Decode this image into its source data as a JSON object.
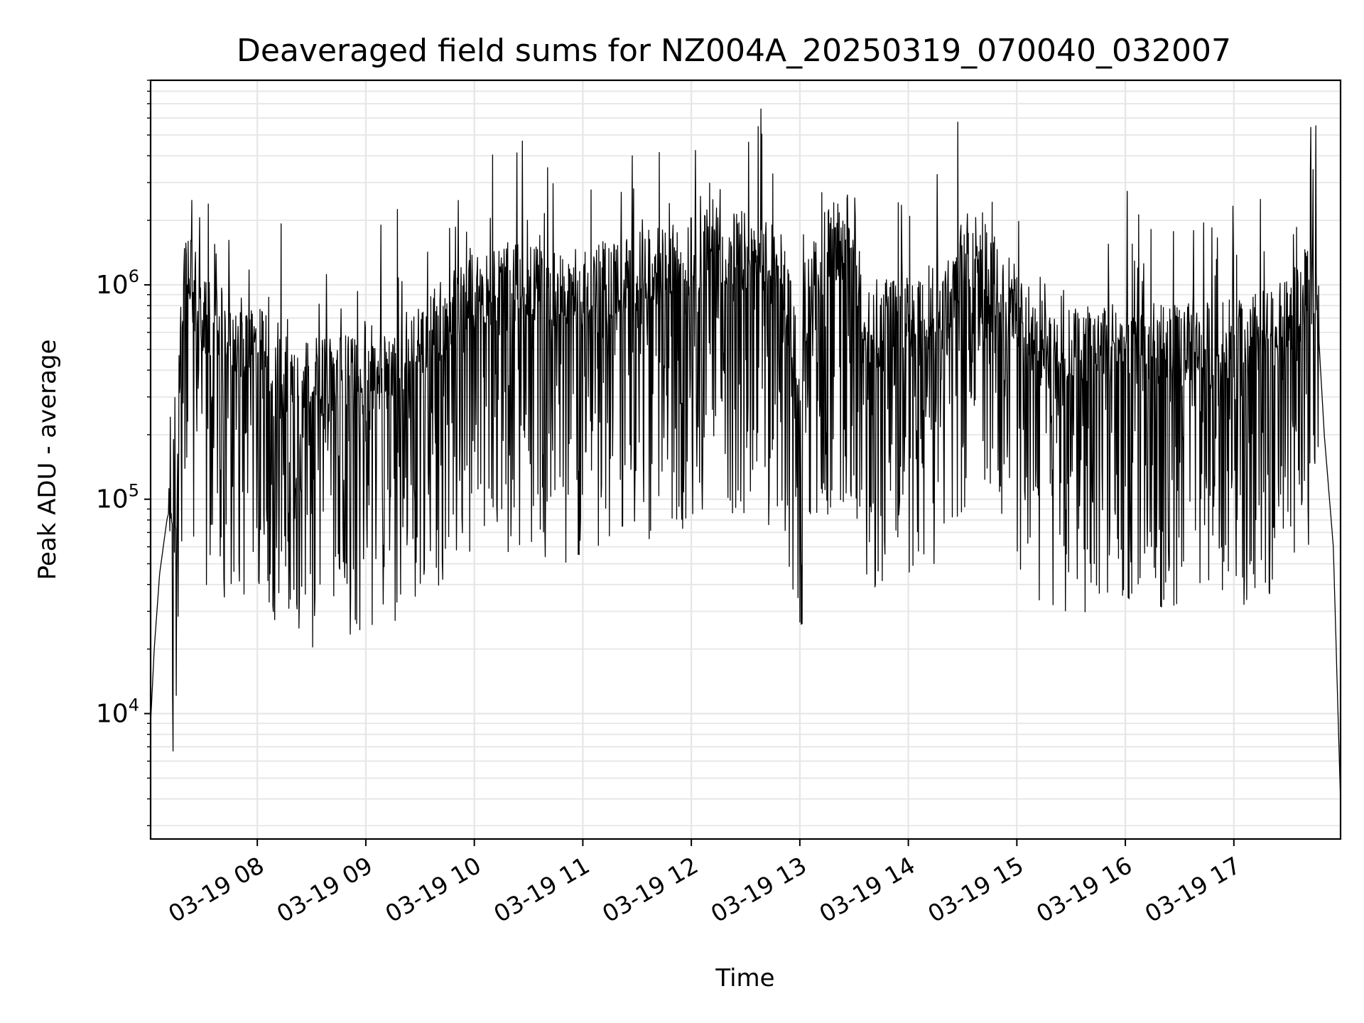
{
  "chart_data": {
    "type": "line",
    "title": "Deaveraged field sums for NZ004A_20250319_070040_032007",
    "xlabel": "Time",
    "ylabel": "Peak ADU - average",
    "y_scale": "log",
    "ylim": [
      2600,
      9000000
    ],
    "xlim": [
      "2025-03-19 07:01",
      "2025-03-19 17:59"
    ],
    "grid": true,
    "x_ticks": [
      "03-19 08",
      "03-19 09",
      "03-19 10",
      "03-19 11",
      "03-19 12",
      "03-19 13",
      "03-19 14",
      "03-19 15",
      "03-19 16",
      "03-19 17"
    ],
    "y_ticks": [
      {
        "base": "10",
        "exp": "4",
        "value": 10000
      },
      {
        "base": "10",
        "exp": "5",
        "value": 100000
      },
      {
        "base": "10",
        "exp": "6",
        "value": 1000000
      }
    ],
    "series": [
      {
        "color": "#000000",
        "x": [
          "07:01",
          "07:03",
          "07:06",
          "07:10",
          "07:15",
          "07:20",
          "07:25",
          "07:30",
          "07:40",
          "07:50",
          "08:00",
          "08:10",
          "08:20",
          "08:30",
          "08:40",
          "08:50",
          "09:00",
          "09:10",
          "09:20",
          "09:30",
          "09:40",
          "09:50",
          "10:00",
          "10:10",
          "10:20",
          "10:30",
          "10:40",
          "10:50",
          "11:00",
          "11:10",
          "11:20",
          "11:30",
          "11:40",
          "11:50",
          "12:00",
          "12:10",
          "12:20",
          "12:30",
          "12:40",
          "12:50",
          "12:55",
          "13:00",
          "13:05",
          "13:10",
          "13:20",
          "13:30",
          "13:35",
          "13:40",
          "13:50",
          "14:00",
          "14:10",
          "14:20",
          "14:30",
          "14:40",
          "14:50",
          "15:00",
          "15:10",
          "15:20",
          "15:30",
          "15:40",
          "15:50",
          "16:00",
          "16:10",
          "16:20",
          "16:30",
          "16:40",
          "16:50",
          "17:00",
          "17:10",
          "17:20",
          "17:30",
          "17:40",
          "17:45",
          "17:50",
          "17:55",
          "17:59"
        ],
        "y": [
          9000,
          20000,
          45000,
          80000,
          120000,
          1500000,
          800000,
          600000,
          550000,
          500000,
          450000,
          400000,
          350000,
          320000,
          330000,
          340000,
          360000,
          380000,
          420000,
          500000,
          600000,
          700000,
          800000,
          850000,
          900000,
          900000,
          850000,
          800000,
          850000,
          900000,
          950000,
          1000000,
          1050000,
          1100000,
          1200000,
          1300000,
          1300000,
          1250000,
          1200000,
          1100000,
          600000,
          300000,
          800000,
          1200000,
          1400000,
          1600000,
          700000,
          500000,
          650000,
          700000,
          750000,
          800000,
          1200000,
          1300000,
          900000,
          700000,
          500000,
          450000,
          450000,
          480000,
          500000,
          500000,
          480000,
          460000,
          460000,
          470000,
          480000,
          500000,
          520000,
          550000,
          600000,
          900000,
          1100000,
          200000,
          60000,
          3800
        ]
      }
    ]
  }
}
